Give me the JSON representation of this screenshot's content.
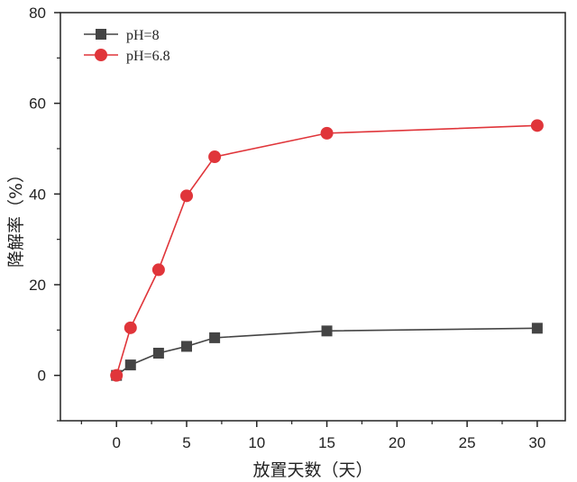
{
  "chart_data": {
    "type": "line",
    "xlabel": "放置天数（天）",
    "ylabel": "降解率（%）",
    "xlim": [
      -4,
      32
    ],
    "ylim": [
      -10,
      80
    ],
    "xticks": [
      0,
      5,
      10,
      15,
      20,
      25,
      30
    ],
    "yticks": [
      0,
      20,
      40,
      60,
      80
    ],
    "legend_position": "top-left",
    "grid": false,
    "series": [
      {
        "name": "pH=8",
        "marker": "square",
        "color": "#444444",
        "x": [
          0,
          1,
          3,
          5,
          7,
          15,
          30
        ],
        "y": [
          0,
          2.3,
          4.9,
          6.4,
          8.3,
          9.8,
          10.4
        ]
      },
      {
        "name": "pH=6.8",
        "marker": "circle",
        "color": "#e0353a",
        "x": [
          0,
          1,
          3,
          5,
          7,
          15,
          30
        ],
        "y": [
          0,
          10.5,
          23.3,
          39.6,
          48.2,
          53.4,
          55.1
        ]
      }
    ]
  }
}
